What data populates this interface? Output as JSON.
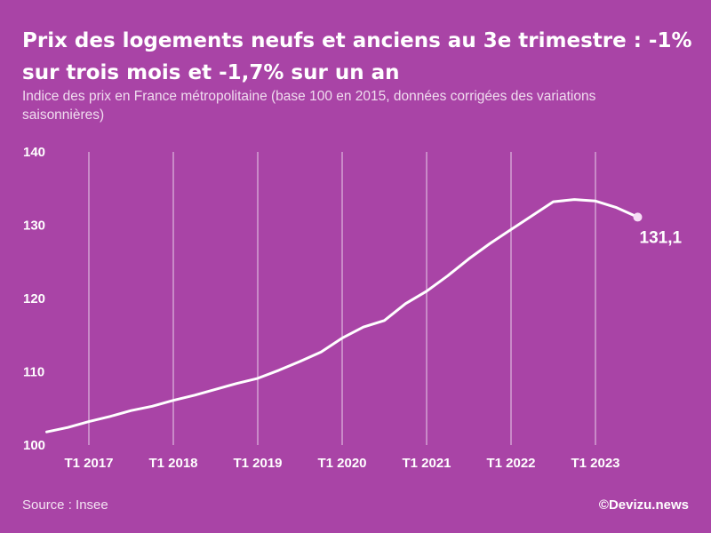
{
  "title": "Prix des logements neufs et anciens au 3e trimestre : -1% sur trois mois et -1,7% sur un an",
  "subtitle": "Indice des prix en France métropolitaine (base 100 en 2015, données corrigées des variations saisonnières)",
  "source": "Source : Insee",
  "credit": "©Devizu.news",
  "colors": {
    "background": "#a944a6",
    "line": "#ffffff",
    "grid": "#ffffff"
  },
  "chart_data": {
    "type": "line",
    "title": "Prix des logements neufs et anciens au 3e trimestre : -1% sur trois mois et -1,7% sur un an",
    "xlabel": "",
    "ylabel": "",
    "ylim": [
      100,
      140
    ],
    "yticks": [
      100,
      110,
      120,
      130,
      140
    ],
    "grid": "vertical",
    "xtick_labels": [
      "T1 2017",
      "T1 2018",
      "T1 2019",
      "T1 2020",
      "T1 2021",
      "T1 2022",
      "T1 2023"
    ],
    "x": [
      "2016-T3",
      "2016-T4",
      "2017-T1",
      "2017-T2",
      "2017-T3",
      "2017-T4",
      "2018-T1",
      "2018-T2",
      "2018-T3",
      "2018-T4",
      "2019-T1",
      "2019-T2",
      "2019-T3",
      "2019-T4",
      "2020-T1",
      "2020-T2",
      "2020-T3",
      "2020-T4",
      "2021-T1",
      "2021-T2",
      "2021-T3",
      "2021-T4",
      "2022-T1",
      "2022-T2",
      "2022-T3",
      "2022-T4",
      "2023-T1",
      "2023-T2",
      "2023-T3"
    ],
    "series": [
      {
        "values": [
          101.8,
          102.4,
          103.2,
          103.9,
          104.7,
          105.3,
          106.1,
          106.8,
          107.6,
          108.4,
          109.1,
          110.2,
          111.4,
          112.7,
          114.6,
          116.1,
          117.0,
          119.3,
          121.0,
          123.1,
          125.4,
          127.5,
          129.4,
          131.3,
          133.2,
          133.5,
          133.3,
          132.4,
          131.1
        ]
      }
    ],
    "end_label": "131,1"
  }
}
